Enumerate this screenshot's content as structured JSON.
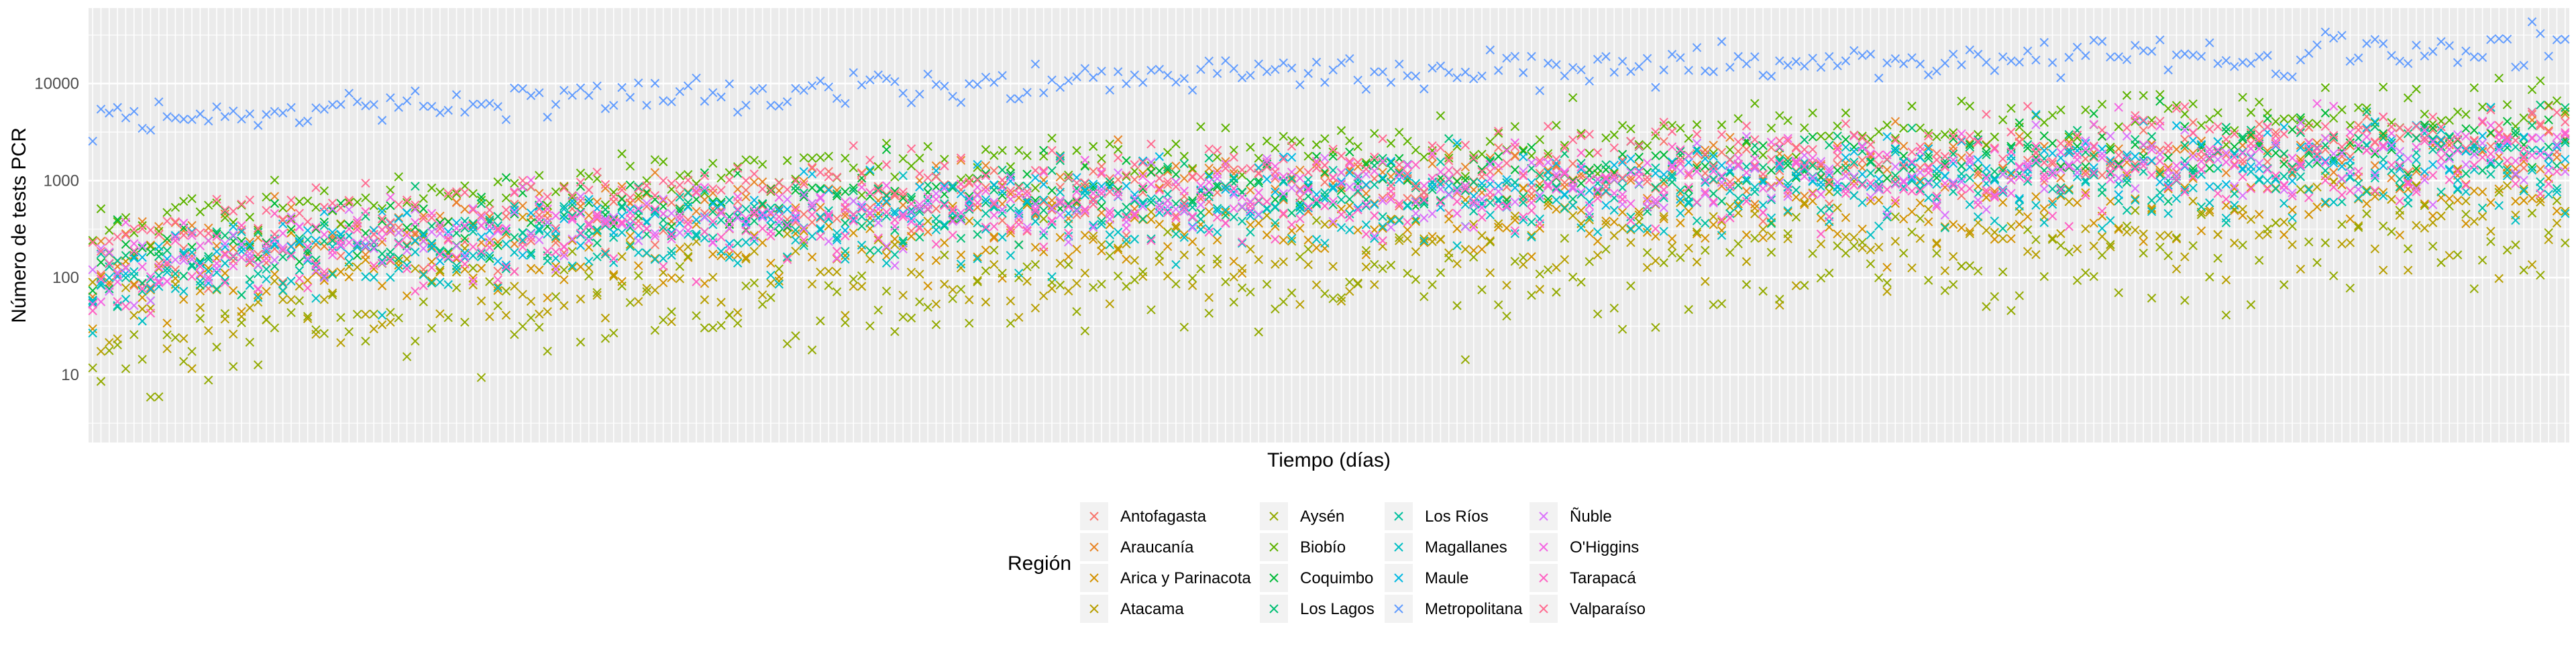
{
  "chart_data": {
    "type": "scatter",
    "xlabel": "Tiempo (días)",
    "ylabel": "Número de tests PCR",
    "y_scale": "log10",
    "ylim": [
      2,
      60000
    ],
    "y_ticks": [
      10,
      100,
      1000,
      10000
    ],
    "y_tick_labels": [
      "10",
      "100",
      "1000",
      "10000"
    ],
    "x_tick_labels_shown": false,
    "n_days": 300,
    "grid": true,
    "panel_background": "#ebebeb",
    "marker": "x",
    "legend_title": "Región",
    "legend_position": "bottom",
    "series": [
      {
        "name": "Antofagasta",
        "color": "#F8766D",
        "start": 100,
        "end": 2600,
        "noise": 0.22,
        "values_shown": "daily counts, approx. 100 rising to 2600"
      },
      {
        "name": "Araucanía",
        "color": "#E88526",
        "start": 180,
        "end": 2200,
        "noise": 0.25,
        "values_shown": "daily counts, approx. 180 rising to 2200"
      },
      {
        "name": "Arica y Parinacota",
        "color": "#D39200",
        "start": 60,
        "end": 700,
        "noise": 0.28,
        "values_shown": "daily counts, approx. 60 rising to 700"
      },
      {
        "name": "Atacama",
        "color": "#B79F00",
        "start": 30,
        "end": 450,
        "noise": 0.35,
        "values_shown": "daily counts, approx. 30 rising to 450"
      },
      {
        "name": "Aysén",
        "color": "#93AA00",
        "start": 12,
        "end": 300,
        "noise": 0.38,
        "values_shown": "daily counts, approx. 12 rising to 300"
      },
      {
        "name": "Biobío",
        "color": "#5EB300",
        "start": 300,
        "end": 6000,
        "noise": 0.18,
        "values_shown": "daily counts, approx. 300 rising to 6000"
      },
      {
        "name": "Coquimbo",
        "color": "#00BA38",
        "start": 150,
        "end": 3000,
        "noise": 0.22,
        "values_shown": "daily counts, approx. 150 rising to 3000"
      },
      {
        "name": "Los Lagos",
        "color": "#00BF74",
        "start": 100,
        "end": 2500,
        "noise": 0.24,
        "values_shown": "daily counts, approx. 100 rising to 2500"
      },
      {
        "name": "Los Ríos",
        "color": "#00C19F",
        "start": 80,
        "end": 1600,
        "noise": 0.25,
        "values_shown": "daily counts, approx. 80 rising to 1600"
      },
      {
        "name": "Magallanes",
        "color": "#00BFC4",
        "start": 60,
        "end": 1200,
        "noise": 0.3,
        "values_shown": "daily counts, approx. 60 rising to 1200"
      },
      {
        "name": "Maule",
        "color": "#00B9E3",
        "start": 120,
        "end": 2400,
        "noise": 0.24,
        "values_shown": "daily counts, approx. 120 rising to 2400"
      },
      {
        "name": "Metropolitana",
        "color": "#619CFF",
        "start": 3500,
        "end": 25000,
        "noise": 0.12,
        "values_shown": "daily counts, approx. 3500 rising to 25000"
      },
      {
        "name": "Ñuble",
        "color": "#DB72FB",
        "start": 100,
        "end": 2000,
        "noise": 0.25,
        "values_shown": "daily counts, approx. 100 rising to 2000"
      },
      {
        "name": "O'Higgins",
        "color": "#F564E3",
        "start": 120,
        "end": 2500,
        "noise": 0.25,
        "values_shown": "daily counts, approx. 120 rising to 2500"
      },
      {
        "name": "Tarapacá",
        "color": "#FF61C3",
        "start": 80,
        "end": 1500,
        "noise": 0.27,
        "values_shown": "daily counts, approx. 80 rising to 1500"
      },
      {
        "name": "Valparaíso",
        "color": "#FF6C91",
        "start": 250,
        "end": 4000,
        "noise": 0.2,
        "values_shown": "daily counts, approx. 250 rising to 4000"
      }
    ]
  }
}
